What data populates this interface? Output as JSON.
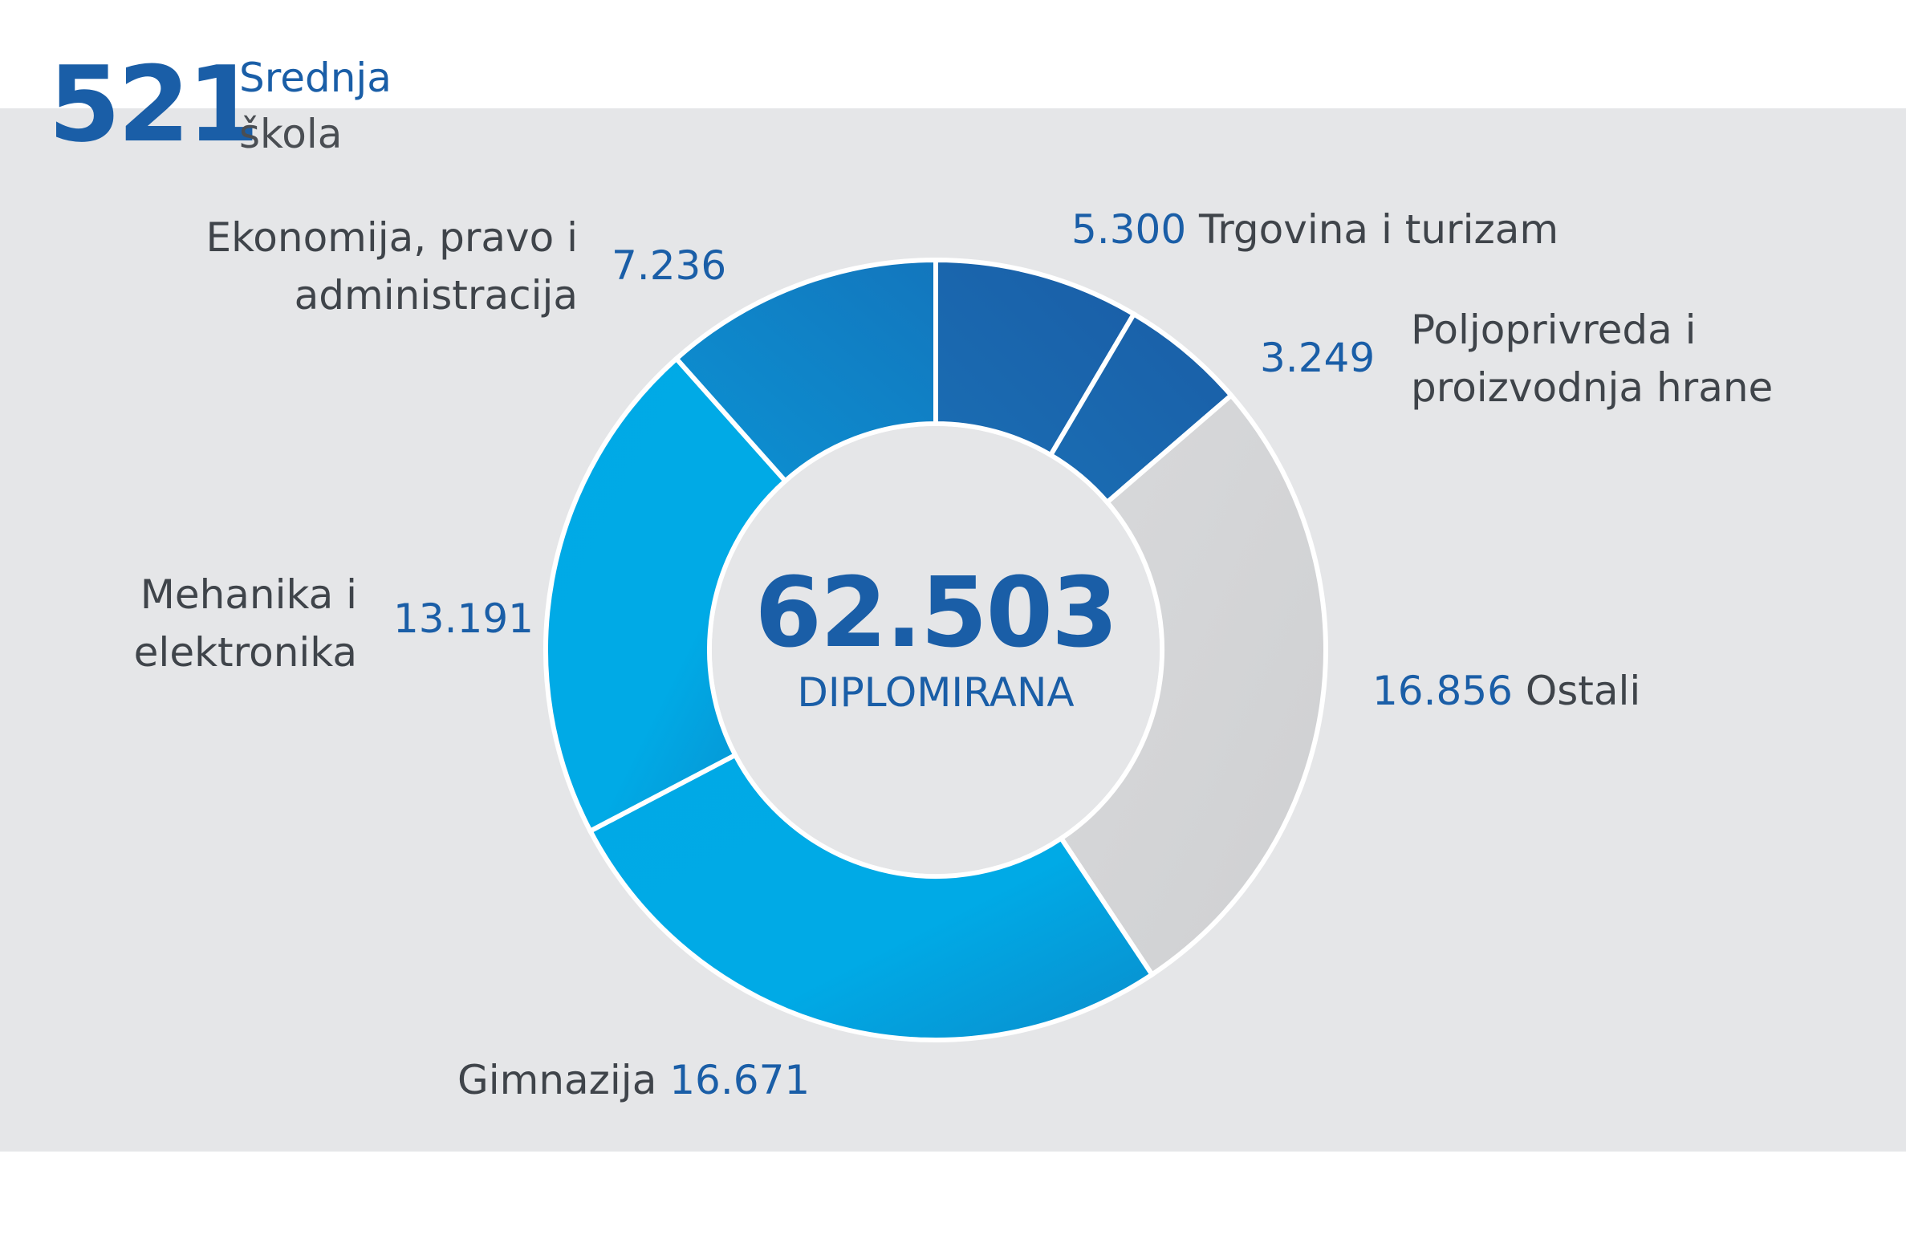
{
  "header": {
    "number": "521",
    "label_line1": "Srednja",
    "label_line2": "škola"
  },
  "center": {
    "total": "62.503",
    "label": "DIPLOMIRANA"
  },
  "colors": {
    "dark_blue": "#1a5ea7",
    "mid_blue": "#0f84c8",
    "light_blue": "#00a9e6",
    "grey": "#d3d4d6",
    "panel": "#e5e6e8"
  },
  "labels": {
    "trgovina": {
      "value": "5.300",
      "name": "Trgovina i turizam"
    },
    "poljoprivreda": {
      "value": "3.249",
      "name_line1": "Poljoprivreda i",
      "name_line2": "proizvodnja hrane"
    },
    "ostali": {
      "value": "16.856",
      "name": "Ostali"
    },
    "gimnazija": {
      "value": "16.671",
      "name": "Gimnazija"
    },
    "mehanika": {
      "value": "13.191",
      "name_line1": "Mehanika i",
      "name_line2": "elektronika"
    },
    "ekonomija": {
      "value": "7.236",
      "name_line1": "Ekonomija, pravo i",
      "name_line2": "administracija"
    }
  },
  "chart_data": {
    "type": "pie",
    "title": "",
    "total": 62503,
    "series": [
      {
        "name": "Trgovina i turizam",
        "value": 5300,
        "color": "#1a5ea7"
      },
      {
        "name": "Poljoprivreda i proizvodnja hrane",
        "value": 3249,
        "color": "#1a5ea7"
      },
      {
        "name": "Ostali",
        "value": 16856,
        "color": "#d3d4d6"
      },
      {
        "name": "Gimnazija",
        "value": 16671,
        "color": "#00a9e6"
      },
      {
        "name": "Mehanika i elektronika",
        "value": 13191,
        "color": "#00a9e6"
      },
      {
        "name": "Ekonomija, pravo i administracija",
        "value": 7236,
        "color": "#0f84c8"
      }
    ]
  }
}
